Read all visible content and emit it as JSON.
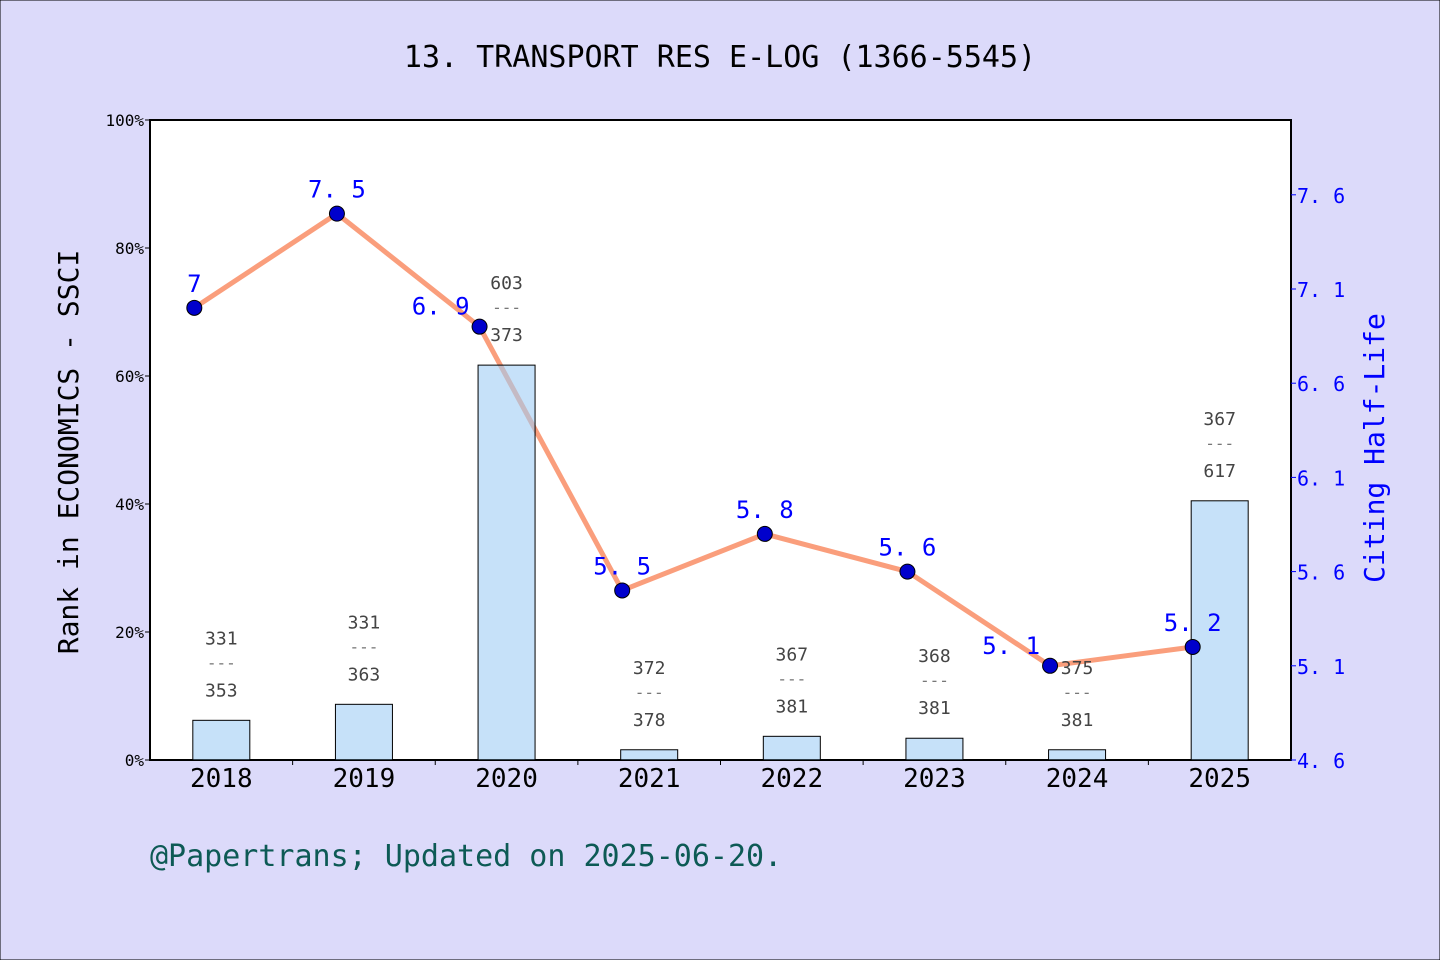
{
  "chart_data": {
    "type": "bar+line",
    "title": "13. TRANSPORT RES E-LOG (1366-5545)",
    "footer": "@Papertrans; Updated on 2025-06-20.",
    "ylabel_left": "Rank in ECONOMICS - SSCI",
    "ylabel_right": "Citing Half-Life",
    "categories": [
      "2018",
      "2019",
      "2020",
      "2021",
      "2022",
      "2023",
      "2024",
      "2025"
    ],
    "left_axis": {
      "range": [
        0,
        100
      ],
      "ticks": [
        "0%",
        "20%",
        "40%",
        "60%",
        "80%",
        "100%"
      ]
    },
    "right_axis": {
      "range": [
        4.6,
        8.0
      ],
      "ticks": [
        "4.6",
        "5.1",
        "5.6",
        "6.1",
        "6.6",
        "7.1",
        "7.6"
      ]
    },
    "bars": {
      "values": [
        6.2,
        8.7,
        61.7,
        1.6,
        3.7,
        3.4,
        1.6,
        40.5
      ],
      "rank": [
        "331",
        "331",
        "603",
        "372",
        "367",
        "368",
        "375",
        "367"
      ],
      "total": [
        "353",
        "363",
        "373",
        "378",
        "381",
        "381",
        "381",
        "617"
      ],
      "separator": "---"
    },
    "line": {
      "values": [
        7,
        7.5,
        6.9,
        5.5,
        5.8,
        5.6,
        5.1,
        5.2
      ],
      "labels": [
        "7",
        "7.5",
        "6.9",
        "5.5",
        "5.8",
        "5.6",
        "5.1",
        "5.2"
      ]
    },
    "colors": {
      "bar": "#c5dff7",
      "line": "#fa9e7c",
      "point": "#0000cc",
      "right_axis": "#0000ff",
      "footer": "#0d5a55",
      "background": "#dcdafa"
    },
    "grid": false
  }
}
